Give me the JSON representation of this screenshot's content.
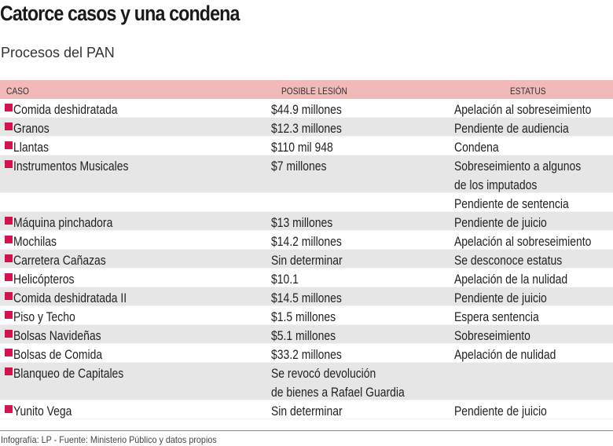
{
  "title": "Catorce casos y una condena",
  "subtitle": "Procesos del PAN",
  "headers": {
    "caso": "CASO",
    "lesion": "POSIBLE LESIÓN",
    "estatus": "ESTATUS"
  },
  "colors": {
    "header": "#f2b9b9",
    "marker": "#d4124d",
    "stripe": "#e6e6e6"
  },
  "rows": [
    {
      "caso": "Comida deshidratada",
      "lesion": "$44.9 millones",
      "estatus": "Apelación al sobreseimiento"
    },
    {
      "caso": "Granos",
      "lesion": "$12.3 millones",
      "estatus": "Pendiente de audiencia"
    },
    {
      "caso": "Llantas",
      "lesion": "$110 mil 948",
      "estatus": "Condena"
    },
    {
      "caso": "Instrumentos Musicales",
      "lesion": "$7 millones",
      "estatus": "Sobreseimiento a algunos",
      "estatus2": "de los imputados",
      "estatus3": "Pendiente de sentencia"
    },
    {
      "caso": "Máquina pinchadora",
      "lesion": "$13 millones",
      "estatus": "Pendiente de juicio"
    },
    {
      "caso": "Mochilas",
      "lesion": "$14.2 millones",
      "estatus": "Apelación al sobreseimiento"
    },
    {
      "caso": "Carretera Cañazas",
      "lesion": "Sin determinar",
      "estatus": "Se desconoce estatus"
    },
    {
      "caso": "Helicópteros",
      "lesion": "$10.1",
      "estatus": "Apelación de la nulidad"
    },
    {
      "caso": "Comida deshidratada II",
      "lesion": "$14.5 millones",
      "estatus": "Pendiente de juicio"
    },
    {
      "caso": "Piso y Techo",
      "lesion": "$1.5 millones",
      "estatus": "Espera sentencia"
    },
    {
      "caso": "Bolsas Navideñas",
      "lesion": "$5.1  millones",
      "estatus": "Sobreseimiento"
    },
    {
      "caso": "Bolsas de Comida",
      "lesion": "$33.2 millones",
      "estatus": "Apelación de nulidad"
    },
    {
      "caso": "Blanqueo de Capitales",
      "lesion": "Se revocó devolución",
      "lesion2": "de bienes a Rafael Guardia",
      "estatus": ""
    },
    {
      "caso": "Yunito Vega",
      "lesion": "Sin determinar",
      "estatus": "Pendiente de juicio"
    }
  ],
  "footer": "Infografía: LP - Fuente: Ministerio Público y datos propios"
}
